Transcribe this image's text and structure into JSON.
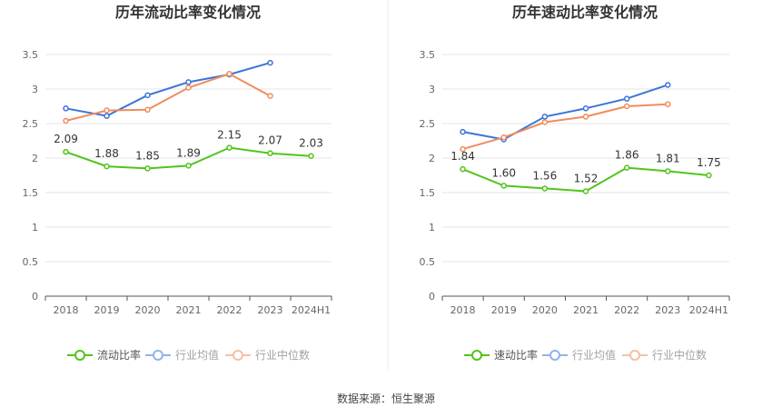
{
  "chart_data": [
    {
      "type": "line",
      "title": "历年流动比率变化情况",
      "categories": [
        "2018",
        "2019",
        "2020",
        "2021",
        "2022",
        "2023",
        "2024H1"
      ],
      "ylim": [
        0,
        3.5
      ],
      "yticks": [
        "0",
        "0.5",
        "1",
        "1.5",
        "2",
        "2.5",
        "3",
        "3.5"
      ],
      "grid": true,
      "legend_position": "bottom",
      "series": [
        {
          "name": "流动比率",
          "color": "#52c41a",
          "values": [
            2.09,
            1.88,
            1.85,
            1.89,
            2.15,
            2.07,
            2.03
          ],
          "labels": [
            "2.09",
            "1.88",
            "1.85",
            "1.89",
            "2.15",
            "2.07",
            "2.03"
          ]
        },
        {
          "name": "行业均值",
          "color": "#3b74d9",
          "values": [
            2.72,
            2.61,
            2.91,
            3.1,
            3.21,
            3.38,
            null
          ]
        },
        {
          "name": "行业中位数",
          "color": "#f08c5c",
          "values": [
            2.54,
            2.69,
            2.7,
            3.02,
            3.22,
            2.9,
            null
          ]
        }
      ]
    },
    {
      "type": "line",
      "title": "历年速动比率变化情况",
      "categories": [
        "2018",
        "2019",
        "2020",
        "2021",
        "2022",
        "2023",
        "2024H1"
      ],
      "ylim": [
        0,
        3.5
      ],
      "yticks": [
        "0",
        "0.5",
        "1",
        "1.5",
        "2",
        "2.5",
        "3",
        "3.5"
      ],
      "grid": true,
      "legend_position": "bottom",
      "series": [
        {
          "name": "速动比率",
          "color": "#52c41a",
          "values": [
            1.84,
            1.6,
            1.56,
            1.52,
            1.86,
            1.81,
            1.75
          ],
          "labels": [
            "1.84",
            "1.60",
            "1.56",
            "1.52",
            "1.86",
            "1.81",
            "1.75"
          ]
        },
        {
          "name": "行业均值",
          "color": "#3b74d9",
          "values": [
            2.38,
            2.27,
            2.6,
            2.72,
            2.86,
            3.06,
            null
          ]
        },
        {
          "name": "行业中位数",
          "color": "#f08c5c",
          "values": [
            2.13,
            2.3,
            2.52,
            2.6,
            2.75,
            2.78,
            null
          ]
        }
      ]
    }
  ],
  "source": "数据来源：恒生聚源"
}
